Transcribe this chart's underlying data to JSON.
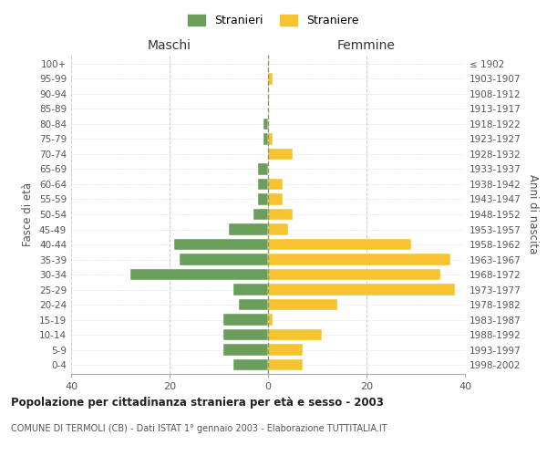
{
  "age_groups": [
    "0-4",
    "5-9",
    "10-14",
    "15-19",
    "20-24",
    "25-29",
    "30-34",
    "35-39",
    "40-44",
    "45-49",
    "50-54",
    "55-59",
    "60-64",
    "65-69",
    "70-74",
    "75-79",
    "80-84",
    "85-89",
    "90-94",
    "95-99",
    "100+"
  ],
  "birth_years": [
    "1998-2002",
    "1993-1997",
    "1988-1992",
    "1983-1987",
    "1978-1982",
    "1973-1977",
    "1968-1972",
    "1963-1967",
    "1958-1962",
    "1953-1957",
    "1948-1952",
    "1943-1947",
    "1938-1942",
    "1933-1937",
    "1928-1932",
    "1923-1927",
    "1918-1922",
    "1913-1917",
    "1908-1912",
    "1903-1907",
    "≤ 1902"
  ],
  "maschi": [
    7,
    9,
    9,
    9,
    6,
    7,
    28,
    18,
    19,
    8,
    3,
    2,
    2,
    2,
    0,
    1,
    1,
    0,
    0,
    0,
    0
  ],
  "femmine": [
    7,
    7,
    11,
    1,
    14,
    38,
    35,
    37,
    29,
    4,
    5,
    3,
    3,
    0,
    5,
    1,
    0,
    0,
    0,
    1,
    0
  ],
  "color_maschi": "#6a9e5b",
  "color_femmine": "#f5c430",
  "title": "Popolazione per cittadinanza straniera per età e sesso - 2003",
  "subtitle": "COMUNE DI TERMOLI (CB) - Dati ISTAT 1° gennaio 2003 - Elaborazione TUTTITALIA.IT",
  "label_left": "Maschi",
  "label_right": "Femmine",
  "ylabel_left": "Fasce di età",
  "ylabel_right": "Anni di nascita",
  "legend_maschi": "Stranieri",
  "legend_femmine": "Straniere",
  "xlim": 40,
  "background_color": "#ffffff",
  "grid_color": "#cccccc"
}
